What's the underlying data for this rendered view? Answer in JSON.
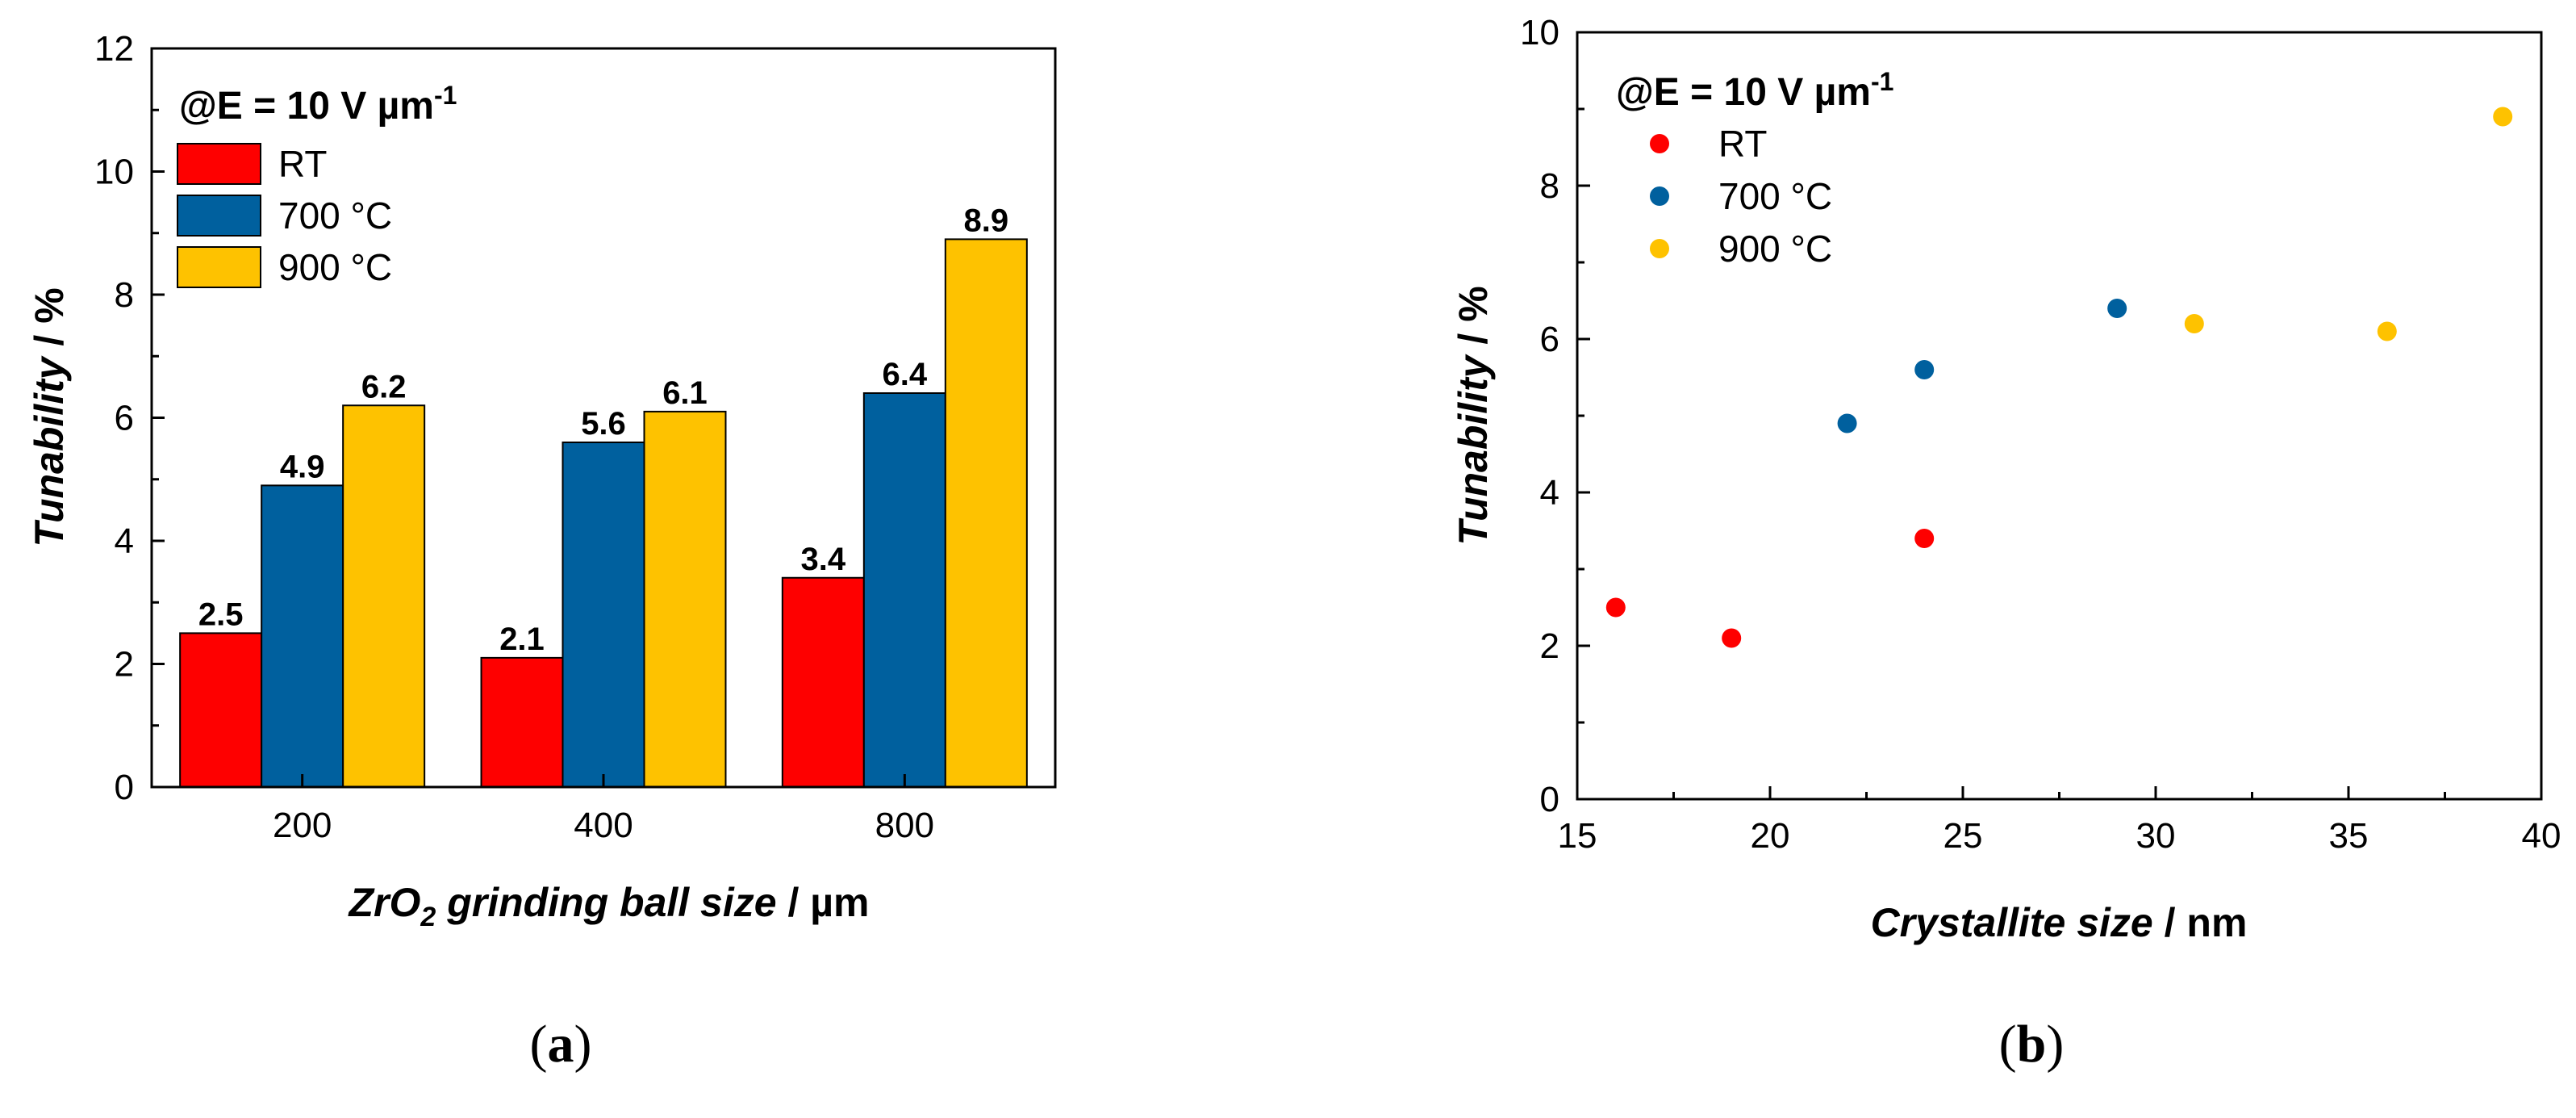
{
  "chart_data": [
    {
      "id": "a",
      "type": "bar",
      "caption": {
        "open": "(",
        "letter": "a",
        "close": ")"
      },
      "xlabel": {
        "prefix": "ZrO",
        "sub": "2",
        "rest": " grinding ball size",
        "unit": " / µm"
      },
      "ylabel": {
        "main": "Tunability",
        "unit": " / %"
      },
      "ylim": [
        0,
        12
      ],
      "yticks": [
        0,
        2,
        4,
        6,
        8,
        10,
        12
      ],
      "categories": [
        "200",
        "400",
        "800"
      ],
      "legend": {
        "title": "@E = 10 V µm",
        "title_sup": "-1",
        "placement": "top-left"
      },
      "series": [
        {
          "name": "RT",
          "color": "#fe0000",
          "values": [
            2.5,
            2.1,
            3.4
          ],
          "labels": [
            "2.5",
            "2.1",
            "3.4"
          ]
        },
        {
          "name": "700 °C",
          "color": "#00609e",
          "values": [
            4.9,
            5.6,
            6.4
          ],
          "labels": [
            "4.9",
            "5.6",
            "6.4"
          ]
        },
        {
          "name": "900 °C",
          "color": "#fec200",
          "values": [
            6.2,
            6.1,
            8.9
          ],
          "labels": [
            "6.2",
            "6.1",
            "8.9"
          ]
        }
      ]
    },
    {
      "id": "b",
      "type": "scatter",
      "caption": {
        "open": "(",
        "letter": "b",
        "close": ")"
      },
      "xlabel": {
        "main": "Crystallite size",
        "unit": " / nm"
      },
      "ylabel": {
        "main": "Tunability",
        "unit": " / %"
      },
      "xlim": [
        15,
        40
      ],
      "ylim": [
        0,
        10
      ],
      "xticks": [
        15,
        20,
        25,
        30,
        35,
        40
      ],
      "yticks": [
        0,
        2,
        4,
        6,
        8,
        10
      ],
      "legend": {
        "title": "@E = 10 V µm",
        "title_sup": "-1",
        "placement": "top-left"
      },
      "series": [
        {
          "name": "RT",
          "color": "#fe0000",
          "points": [
            [
              16,
              2.5
            ],
            [
              19,
              2.1
            ],
            [
              24,
              3.4
            ]
          ]
        },
        {
          "name": "700 °C",
          "color": "#00609e",
          "points": [
            [
              22,
              4.9
            ],
            [
              24,
              5.6
            ],
            [
              29,
              6.4
            ]
          ]
        },
        {
          "name": "900 °C",
          "color": "#fec200",
          "points": [
            [
              31,
              6.2
            ],
            [
              36,
              6.1
            ],
            [
              39,
              8.9
            ]
          ]
        }
      ]
    }
  ]
}
